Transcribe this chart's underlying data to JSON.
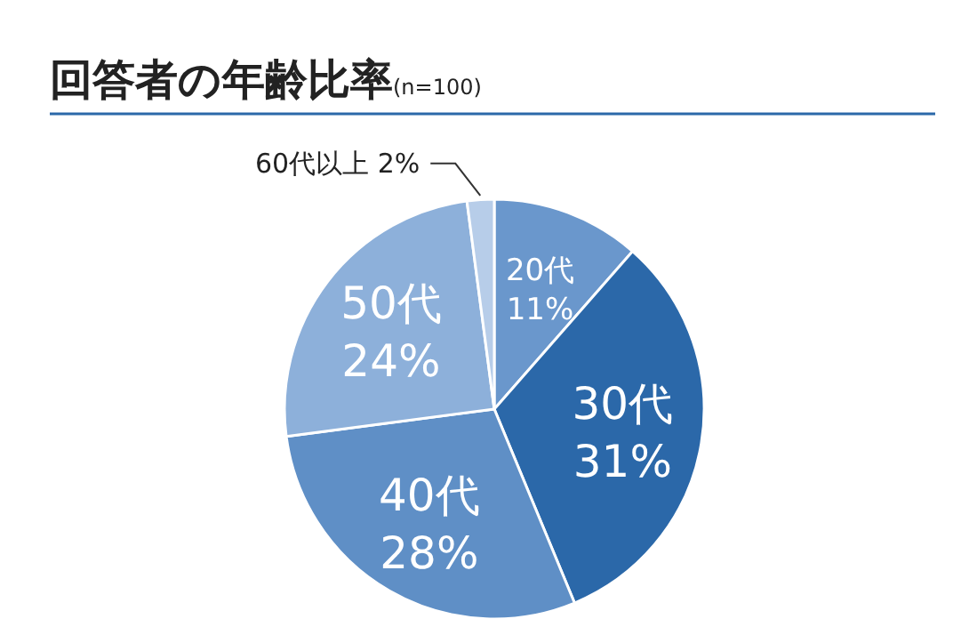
{
  "chart_data": {
    "type": "pie",
    "title": "回答者の年齢比率",
    "subtitle": "(n=100)",
    "categories": [
      "20代",
      "30代",
      "40代",
      "50代",
      "60代以上"
    ],
    "values": [
      11,
      31,
      28,
      24,
      2
    ],
    "value_labels": [
      "11%",
      "31%",
      "28%",
      "24%",
      "2%"
    ],
    "colors": [
      "#6a97cc",
      "#2b68a9",
      "#5f8fc6",
      "#8db0da",
      "#b7cde9"
    ]
  }
}
